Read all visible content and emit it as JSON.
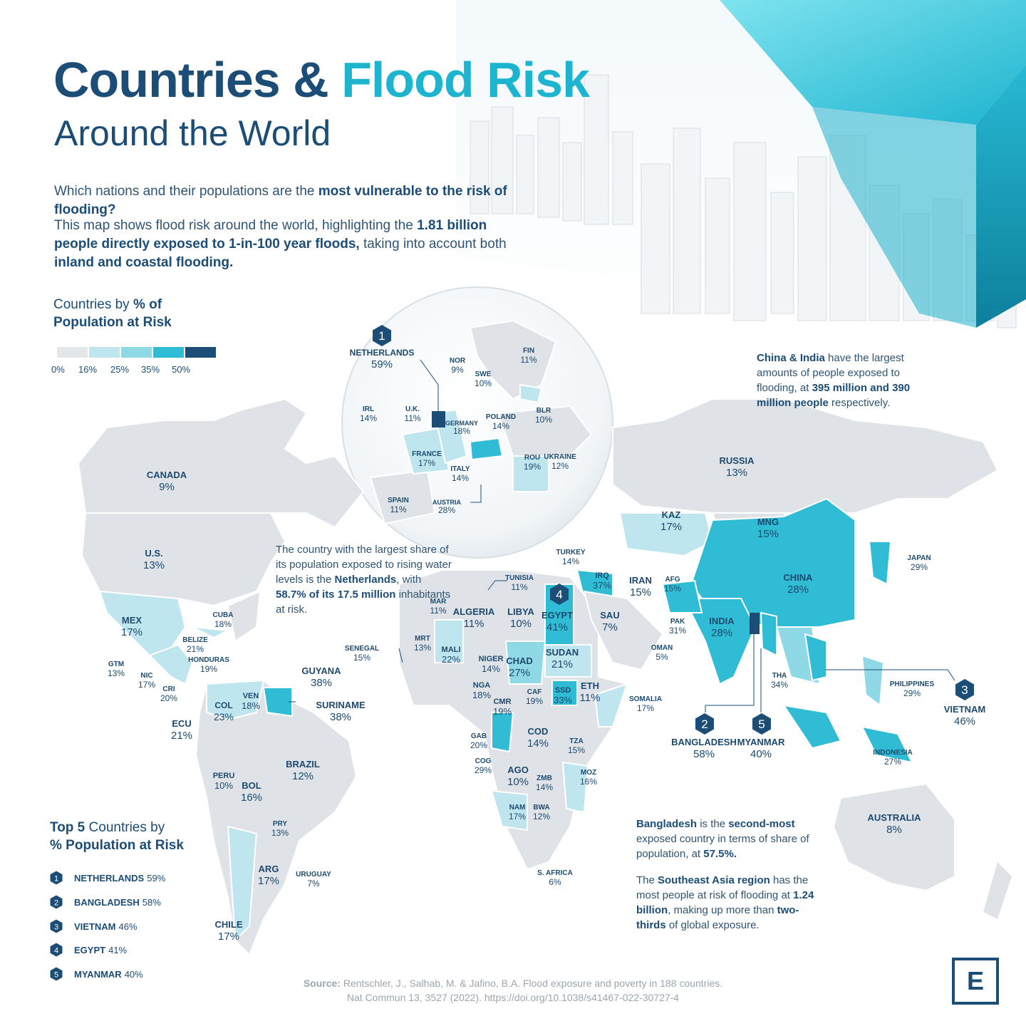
{
  "header": {
    "title_part1": "Countries &",
    "title_part2": "Flood Risk",
    "subtitle": "Around the World"
  },
  "intro": {
    "q_pre": "Which nations and their populations are the ",
    "q_bold": "most vulnerable to the risk of flooding?",
    "p_pre": "This map shows flood risk around the world, highlighting the ",
    "p_bold1": "1.81 billion people directly exposed to 1-in-100 year floods,",
    "p_mid": " taking into account both ",
    "p_bold2": "inland and coastal flooding."
  },
  "legend": {
    "title_pre": "Countries by ",
    "title_bold": "% of Population at Risk",
    "ticks": [
      "0%",
      "16%",
      "25%",
      "35%",
      "50%"
    ],
    "colors": [
      "#e3e7ea",
      "#bfe6ef",
      "#8fd8e6",
      "#2fbcd4",
      "#1b4d77"
    ]
  },
  "colors": {
    "navy": "#1b4d77",
    "cyan": "#1db4d0",
    "land_gray": "#dde2e6",
    "light_cyan": "#bfe6ef",
    "mid_cyan": "#8fd8e6",
    "strong_cyan": "#2fbcd4"
  },
  "countries": [
    {
      "name": "NETHERLANDS",
      "value": "59%"
    },
    {
      "name": "NOR",
      "value": "9%"
    },
    {
      "name": "FIN",
      "value": "11%"
    },
    {
      "name": "SWE",
      "value": "10%"
    },
    {
      "name": "IRL",
      "value": "14%"
    },
    {
      "name": "U.K.",
      "value": "11%"
    },
    {
      "name": "GERMANY",
      "value": "18%"
    },
    {
      "name": "POLAND",
      "value": "14%"
    },
    {
      "name": "BLR",
      "value": "10%"
    },
    {
      "name": "UKRAINE",
      "value": "12%"
    },
    {
      "name": "FRANCE",
      "value": "17%"
    },
    {
      "name": "ITALY",
      "value": "14%"
    },
    {
      "name": "ROU",
      "value": "19%"
    },
    {
      "name": "SPAIN",
      "value": "11%"
    },
    {
      "name": "AUSTRIA",
      "value": "28%"
    },
    {
      "name": "CANADA",
      "value": "9%"
    },
    {
      "name": "U.S.",
      "value": "13%"
    },
    {
      "name": "MEX",
      "value": "17%"
    },
    {
      "name": "CUBA",
      "value": "18%"
    },
    {
      "name": "BELIZE",
      "value": "21%"
    },
    {
      "name": "GTM",
      "value": "13%"
    },
    {
      "name": "HONDURAS",
      "value": "19%"
    },
    {
      "name": "NIC",
      "value": "17%"
    },
    {
      "name": "CRI",
      "value": "20%"
    },
    {
      "name": "GUYANA",
      "value": "38%"
    },
    {
      "name": "SURINAME",
      "value": "38%"
    },
    {
      "name": "COL",
      "value": "23%"
    },
    {
      "name": "VEN",
      "value": "18%"
    },
    {
      "name": "ECU",
      "value": "21%"
    },
    {
      "name": "PERU",
      "value": "10%"
    },
    {
      "name": "BOL",
      "value": "16%"
    },
    {
      "name": "BRAZIL",
      "value": "12%"
    },
    {
      "name": "PRY",
      "value": "13%"
    },
    {
      "name": "ARG",
      "value": "17%"
    },
    {
      "name": "URUGUAY",
      "value": "7%"
    },
    {
      "name": "CHILE",
      "value": "17%"
    },
    {
      "name": "RUSSIA",
      "value": "13%"
    },
    {
      "name": "KAZ",
      "value": "17%"
    },
    {
      "name": "MNG",
      "value": "15%"
    },
    {
      "name": "TURKEY",
      "value": "14%"
    },
    {
      "name": "TUNISIA",
      "value": "11%"
    },
    {
      "name": "IRQ",
      "value": "37%"
    },
    {
      "name": "IRAN",
      "value": "15%"
    },
    {
      "name": "AFG",
      "value": "15%"
    },
    {
      "name": "CHINA",
      "value": "28%"
    },
    {
      "name": "JAPAN",
      "value": "29%"
    },
    {
      "name": "MAR",
      "value": "11%"
    },
    {
      "name": "ALGERIA",
      "value": "11%"
    },
    {
      "name": "LIBYA",
      "value": "10%"
    },
    {
      "name": "EGYPT",
      "value": "41%"
    },
    {
      "name": "SAU",
      "value": "7%"
    },
    {
      "name": "PAK",
      "value": "31%"
    },
    {
      "name": "INDIA",
      "value": "28%"
    },
    {
      "name": "MRT",
      "value": "13%"
    },
    {
      "name": "MALI",
      "value": "22%"
    },
    {
      "name": "SENEGAL",
      "value": "15%"
    },
    {
      "name": "NIGER",
      "value": "14%"
    },
    {
      "name": "CHAD",
      "value": "27%"
    },
    {
      "name": "SUDAN",
      "value": "21%"
    },
    {
      "name": "OMAN",
      "value": "5%"
    },
    {
      "name": "NGA",
      "value": "18%"
    },
    {
      "name": "CAF",
      "value": "19%"
    },
    {
      "name": "SSD",
      "value": "33%"
    },
    {
      "name": "ETH",
      "value": "11%"
    },
    {
      "name": "SOMALIA",
      "value": "17%"
    },
    {
      "name": "CMR",
      "value": "19%"
    },
    {
      "name": "THA",
      "value": "34%"
    },
    {
      "name": "PHILIPPINES",
      "value": "29%"
    },
    {
      "name": "VIETNAM",
      "value": "46%"
    },
    {
      "name": "GAB",
      "value": "20%"
    },
    {
      "name": "COD",
      "value": "14%"
    },
    {
      "name": "TZA",
      "value": "15%"
    },
    {
      "name": "BANGLADESH",
      "value": "58%"
    },
    {
      "name": "MYANMAR",
      "value": "40%"
    },
    {
      "name": "COG",
      "value": "29%"
    },
    {
      "name": "INDONESIA",
      "value": "27%"
    },
    {
      "name": "AGO",
      "value": "10%"
    },
    {
      "name": "ZMB",
      "value": "14%"
    },
    {
      "name": "MOZ",
      "value": "16%"
    },
    {
      "name": "NAM",
      "value": "17%"
    },
    {
      "name": "BWA",
      "value": "12%"
    },
    {
      "name": "AUSTRALIA",
      "value": "8%"
    },
    {
      "name": "S. AFRICA",
      "value": "6%"
    }
  ],
  "badges": [
    "1",
    "2",
    "3",
    "4",
    "5"
  ],
  "notes": {
    "netherlands": {
      "pre": "The country with the largest share of its population exposed to rising water levels is the ",
      "bold1": "Netherlands",
      "mid": ", with ",
      "bold2": "58.7% of its 17.5 million",
      "post": " inhabitants at risk."
    },
    "china_india": {
      "bold1": "China & India",
      "mid": " have the largest amounts of people exposed to flooding, at ",
      "bold2": "395 million and 390 million people",
      "post": " respectively."
    },
    "bangladesh": {
      "bold1": "Bangladesh",
      "mid1": " is the ",
      "bold2": "second-most",
      "mid2": " exposed country in terms of share of population, at ",
      "bold3": "57.5%."
    },
    "sea": {
      "pre": "The ",
      "bold1": "Southeast Asia region",
      "mid1": " has the most people at risk of flooding at ",
      "bold2": "1.24 billion",
      "mid2": ", making up more than ",
      "bold3": "two-thirds",
      "post": " of global exposure."
    }
  },
  "top5": {
    "title_bold1": "Top 5",
    "title_mid": " Countries by",
    "title_bold2": "% Population at Risk",
    "items": [
      {
        "rank": "1",
        "name": "NETHERLANDS",
        "value": "59%"
      },
      {
        "rank": "2",
        "name": "BANGLADESH",
        "value": "58%"
      },
      {
        "rank": "3",
        "name": "VIETNAM",
        "value": "46%"
      },
      {
        "rank": "4",
        "name": "EGYPT",
        "value": "41%"
      },
      {
        "rank": "5",
        "name": "MYANMAR",
        "value": "40%"
      }
    ]
  },
  "source": {
    "label": "Source:",
    "line1": " Rentschler, J., Salhab, M. & Jafino, B.A.  Flood exposure and poverty in 188 countries.",
    "line2": "Nat Commun 13, 3527 (2022). https://doi.org/10.1038/s41467-022-30727-4"
  },
  "logo": {
    "letter": "E"
  }
}
